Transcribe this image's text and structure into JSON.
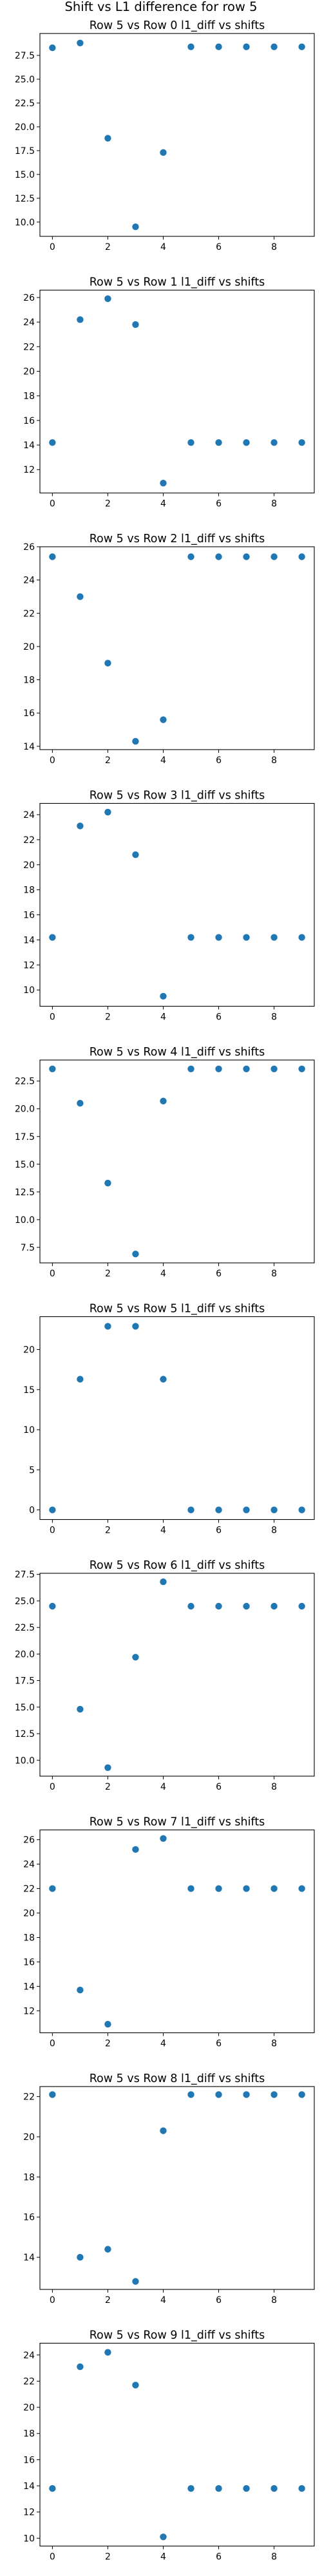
{
  "figure": {
    "suptitle": "Shift vs L1 difference for row 5",
    "marker_color": "#1f77b4"
  },
  "chart_data": [
    {
      "type": "scatter",
      "title": "Row 5 vs Row 0 l1_diff vs shifts",
      "x": [
        0,
        1,
        2,
        3,
        4,
        5,
        6,
        7,
        8,
        9
      ],
      "y": [
        28.3,
        28.8,
        18.8,
        9.5,
        17.3,
        28.4,
        28.4,
        28.4,
        28.4,
        28.4
      ],
      "xlim": [
        -0.45,
        9.45
      ],
      "ylim": [
        8.5,
        29.8
      ],
      "xticks": [
        0,
        2,
        4,
        6,
        8
      ],
      "yticks": [
        10.0,
        12.5,
        15.0,
        17.5,
        20.0,
        22.5,
        25.0,
        27.5
      ],
      "ytick_labels": [
        "10.0",
        "12.5",
        "15.0",
        "17.5",
        "20.0",
        "22.5",
        "25.0",
        "27.5"
      ],
      "grid": false
    },
    {
      "type": "scatter",
      "title": "Row 5 vs Row 1 l1_diff vs shifts",
      "x": [
        0,
        1,
        2,
        3,
        4,
        5,
        6,
        7,
        8,
        9
      ],
      "y": [
        14.2,
        24.2,
        25.9,
        23.8,
        10.9,
        14.2,
        14.2,
        14.2,
        14.2,
        14.2
      ],
      "xlim": [
        -0.45,
        9.45
      ],
      "ylim": [
        10.1,
        26.6
      ],
      "xticks": [
        0,
        2,
        4,
        6,
        8
      ],
      "yticks": [
        12,
        14,
        16,
        18,
        20,
        22,
        24,
        26
      ],
      "ytick_labels": [
        "12",
        "14",
        "16",
        "18",
        "20",
        "22",
        "24",
        "26"
      ],
      "grid": false
    },
    {
      "type": "scatter",
      "title": "Row 5 vs Row 2 l1_diff vs shifts",
      "x": [
        0,
        1,
        2,
        3,
        4,
        5,
        6,
        7,
        8,
        9
      ],
      "y": [
        25.4,
        23.0,
        19.0,
        14.3,
        15.6,
        25.4,
        25.4,
        25.4,
        25.4,
        25.4
      ],
      "xlim": [
        -0.45,
        9.45
      ],
      "ylim": [
        13.8,
        26.0
      ],
      "xticks": [
        0,
        2,
        4,
        6,
        8
      ],
      "yticks": [
        14,
        16,
        18,
        20,
        22,
        24,
        26
      ],
      "ytick_labels": [
        "14",
        "16",
        "18",
        "20",
        "22",
        "24",
        "26"
      ],
      "grid": false
    },
    {
      "type": "scatter",
      "title": "Row 5 vs Row 3 l1_diff vs shifts",
      "x": [
        0,
        1,
        2,
        3,
        4,
        5,
        6,
        7,
        8,
        9
      ],
      "y": [
        14.2,
        23.1,
        24.2,
        20.8,
        9.5,
        14.2,
        14.2,
        14.2,
        14.2,
        14.2
      ],
      "xlim": [
        -0.45,
        9.45
      ],
      "ylim": [
        8.7,
        24.9
      ],
      "xticks": [
        0,
        2,
        4,
        6,
        8
      ],
      "yticks": [
        10,
        12,
        14,
        16,
        18,
        20,
        22,
        24
      ],
      "ytick_labels": [
        "10",
        "12",
        "14",
        "16",
        "18",
        "20",
        "22",
        "24"
      ],
      "grid": false
    },
    {
      "type": "scatter",
      "title": "Row 5 vs Row 4 l1_diff vs shifts",
      "x": [
        0,
        1,
        2,
        3,
        4,
        5,
        6,
        7,
        8,
        9
      ],
      "y": [
        23.6,
        20.5,
        13.3,
        6.9,
        20.7,
        23.6,
        23.6,
        23.6,
        23.6,
        23.6
      ],
      "xlim": [
        -0.45,
        9.45
      ],
      "ylim": [
        6.1,
        24.4
      ],
      "xticks": [
        0,
        2,
        4,
        6,
        8
      ],
      "yticks": [
        7.5,
        10.0,
        12.5,
        15.0,
        17.5,
        20.0,
        22.5
      ],
      "ytick_labels": [
        "7.5",
        "10.0",
        "12.5",
        "15.0",
        "17.5",
        "20.0",
        "22.5"
      ],
      "grid": false
    },
    {
      "type": "scatter",
      "title": "Row 5 vs Row 5 l1_diff vs shifts",
      "x": [
        0,
        1,
        2,
        3,
        4,
        5,
        6,
        7,
        8,
        9
      ],
      "y": [
        0,
        16.3,
        22.9,
        22.9,
        16.3,
        0,
        0,
        0,
        0,
        0
      ],
      "xlim": [
        -0.45,
        9.45
      ],
      "ylim": [
        -1.2,
        24.1
      ],
      "xticks": [
        0,
        2,
        4,
        6,
        8
      ],
      "yticks": [
        0,
        5,
        10,
        15,
        20
      ],
      "ytick_labels": [
        "0",
        "5",
        "10",
        "15",
        "20"
      ],
      "grid": false
    },
    {
      "type": "scatter",
      "title": "Row 5 vs Row 6 l1_diff vs shifts",
      "x": [
        0,
        1,
        2,
        3,
        4,
        5,
        6,
        7,
        8,
        9
      ],
      "y": [
        24.5,
        14.8,
        9.3,
        19.7,
        26.8,
        24.5,
        24.5,
        24.5,
        24.5,
        24.5
      ],
      "xlim": [
        -0.45,
        9.45
      ],
      "ylim": [
        8.5,
        27.6
      ],
      "xticks": [
        0,
        2,
        4,
        6,
        8
      ],
      "yticks": [
        10.0,
        12.5,
        15.0,
        17.5,
        20.0,
        22.5,
        25.0,
        27.5
      ],
      "ytick_labels": [
        "10.0",
        "12.5",
        "15.0",
        "17.5",
        "20.0",
        "22.5",
        "25.0",
        "27.5"
      ],
      "grid": false
    },
    {
      "type": "scatter",
      "title": "Row 5 vs Row 7 l1_diff vs shifts",
      "x": [
        0,
        1,
        2,
        3,
        4,
        5,
        6,
        7,
        8,
        9
      ],
      "y": [
        22.0,
        13.7,
        10.9,
        25.2,
        26.1,
        22.0,
        22.0,
        22.0,
        22.0,
        22.0
      ],
      "xlim": [
        -0.45,
        9.45
      ],
      "ylim": [
        10.2,
        26.8
      ],
      "xticks": [
        0,
        2,
        4,
        6,
        8
      ],
      "yticks": [
        12,
        14,
        16,
        18,
        20,
        22,
        24,
        26
      ],
      "ytick_labels": [
        "12",
        "14",
        "16",
        "18",
        "20",
        "22",
        "24",
        "26"
      ],
      "grid": false
    },
    {
      "type": "scatter",
      "title": "Row 5 vs Row 8 l1_diff vs shifts",
      "x": [
        0,
        1,
        2,
        3,
        4,
        5,
        6,
        7,
        8,
        9
      ],
      "y": [
        22.1,
        14.0,
        14.4,
        12.8,
        20.3,
        22.1,
        22.1,
        22.1,
        22.1,
        22.1
      ],
      "xlim": [
        -0.45,
        9.45
      ],
      "ylim": [
        12.4,
        22.5
      ],
      "xticks": [
        0,
        2,
        4,
        6,
        8
      ],
      "yticks": [
        14,
        16,
        18,
        20,
        22
      ],
      "ytick_labels": [
        "14",
        "16",
        "18",
        "20",
        "22"
      ],
      "grid": false
    },
    {
      "type": "scatter",
      "title": "Row 5 vs Row 9 l1_diff vs shifts",
      "x": [
        0,
        1,
        2,
        3,
        4,
        5,
        6,
        7,
        8,
        9
      ],
      "y": [
        13.8,
        23.1,
        24.2,
        21.7,
        10.1,
        13.8,
        13.8,
        13.8,
        13.8,
        13.8
      ],
      "xlim": [
        -0.45,
        9.45
      ],
      "ylim": [
        9.4,
        24.9
      ],
      "xticks": [
        0,
        2,
        4,
        6,
        8
      ],
      "yticks": [
        10,
        12,
        14,
        16,
        18,
        20,
        22,
        24
      ],
      "ytick_labels": [
        "10",
        "12",
        "14",
        "16",
        "18",
        "20",
        "22",
        "24"
      ],
      "grid": false
    }
  ]
}
